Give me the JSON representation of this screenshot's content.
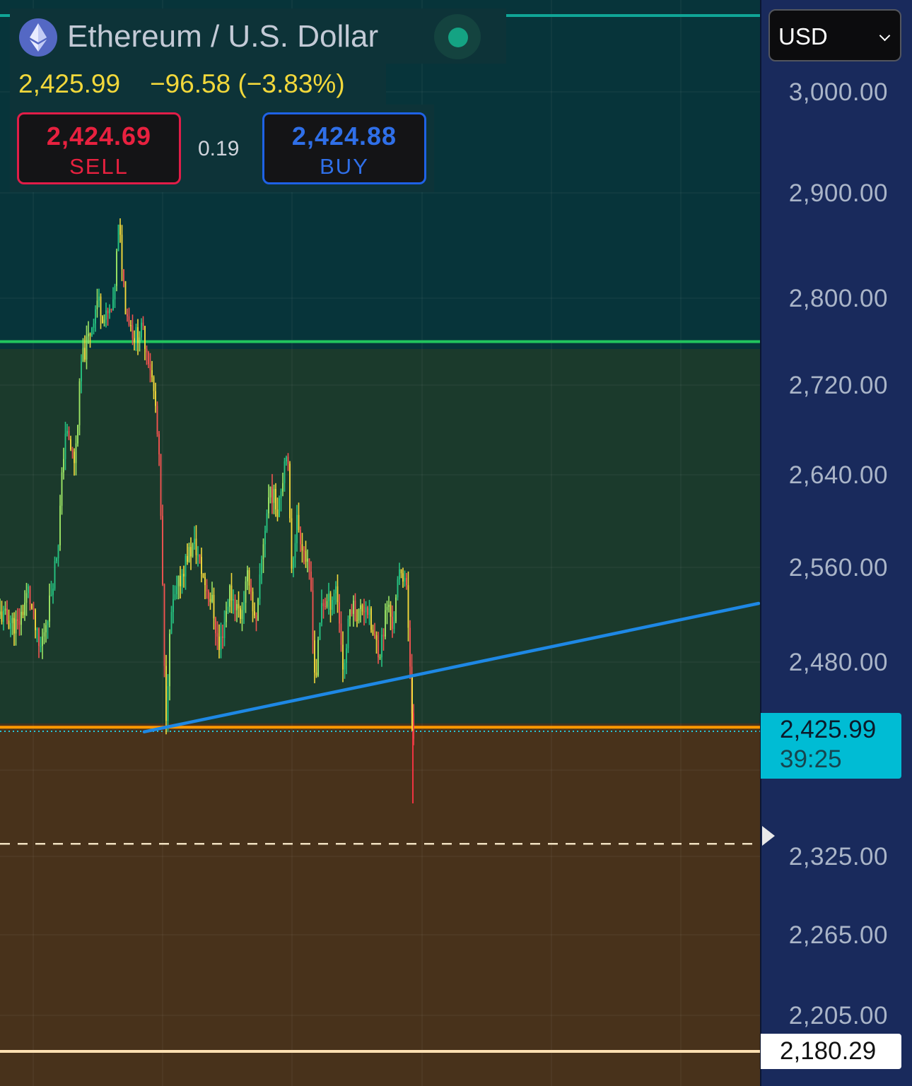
{
  "symbol": {
    "title": "Ethereum / U.S. Dollar",
    "icon": "ethereum-logo-icon",
    "status": "market-open"
  },
  "quote": {
    "last": "2,425.99",
    "change": "−96.58 (−3.83%)"
  },
  "trade": {
    "sell_price": "2,424.69",
    "sell_label": "SELL",
    "spread": "0.19",
    "buy_price": "2,424.88",
    "buy_label": "BUY"
  },
  "currency": {
    "selected": "USD"
  },
  "price_axis": {
    "ticks": [
      "3,000.00",
      "2,900.00",
      "2,800.00",
      "2,720.00",
      "2,640.00",
      "2,560.00",
      "2,480.00",
      "2,325.00",
      "2,265.00",
      "2,205.00"
    ],
    "current_price": "2,425.99",
    "countdown": "39:25",
    "line_label": "2,180.29"
  },
  "colors": {
    "up": "#26c281",
    "down": "#ef5350",
    "accent_yellow": "#f2d83b",
    "trendline": "#1e88e5",
    "resistance": "#22c55e",
    "support": "#ff9800",
    "current_price_tag": "#00bcd4",
    "sell": "#e11d48",
    "buy": "#1f62e6"
  },
  "chart_data": {
    "type": "candlestick",
    "price_range": [
      2180,
      3000
    ],
    "levels": [
      {
        "kind": "horizontal-line",
        "price": 2760,
        "color": "#22c55e"
      },
      {
        "kind": "horizontal-line",
        "price": 2428,
        "color": "#ff9800"
      },
      {
        "kind": "horizontal-line",
        "price": 2335,
        "style": "dashed",
        "color": "#f0e0c0"
      },
      {
        "kind": "horizontal-line",
        "price": 2180.29,
        "color": "#ffe0b2"
      }
    ],
    "zones": [
      {
        "from": 2760,
        "to": 3000,
        "color": "#07343a"
      },
      {
        "from": 2428,
        "to": 2760,
        "color": "#1b3a2c"
      },
      {
        "from": 2180,
        "to": 2428,
        "color": "#48321b"
      }
    ],
    "trendline": {
      "from_price": 2430,
      "to_price": 2530,
      "color": "#1e88e5"
    },
    "path": [
      [
        0,
        2520
      ],
      [
        25,
        2510
      ],
      [
        40,
        2540
      ],
      [
        56,
        2488
      ],
      [
        70,
        2530
      ],
      [
        82,
        2580
      ],
      [
        92,
        2680
      ],
      [
        106,
        2650
      ],
      [
        115,
        2740
      ],
      [
        128,
        2770
      ],
      [
        138,
        2800
      ],
      [
        148,
        2780
      ],
      [
        160,
        2790
      ],
      [
        168,
        2870
      ],
      [
        178,
        2790
      ],
      [
        190,
        2765
      ],
      [
        202,
        2770
      ],
      [
        212,
        2740
      ],
      [
        220,
        2700
      ],
      [
        226,
        2640
      ],
      [
        230,
        2540
      ],
      [
        234,
        2430
      ],
      [
        242,
        2520
      ],
      [
        255,
        2550
      ],
      [
        265,
        2570
      ],
      [
        276,
        2580
      ],
      [
        288,
        2550
      ],
      [
        300,
        2530
      ],
      [
        310,
        2490
      ],
      [
        325,
        2540
      ],
      [
        340,
        2520
      ],
      [
        352,
        2555
      ],
      [
        362,
        2505
      ],
      [
        372,
        2580
      ],
      [
        382,
        2630
      ],
      [
        392,
        2610
      ],
      [
        400,
        2640
      ],
      [
        406,
        2670
      ],
      [
        412,
        2560
      ],
      [
        420,
        2600
      ],
      [
        432,
        2570
      ],
      [
        440,
        2540
      ],
      [
        446,
        2460
      ],
      [
        455,
        2530
      ],
      [
        466,
        2530
      ],
      [
        476,
        2545
      ],
      [
        486,
        2470
      ],
      [
        496,
        2530
      ],
      [
        506,
        2520
      ],
      [
        518,
        2530
      ],
      [
        528,
        2500
      ],
      [
        538,
        2490
      ],
      [
        548,
        2530
      ],
      [
        556,
        2510
      ],
      [
        566,
        2560
      ],
      [
        574,
        2550
      ],
      [
        580,
        2480
      ],
      [
        585,
        2415
      ],
      [
        586,
        2440
      ]
    ]
  }
}
